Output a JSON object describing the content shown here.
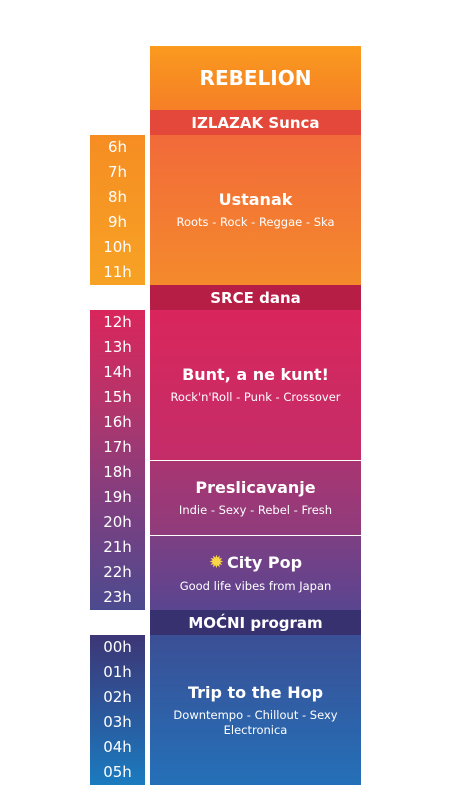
{
  "station": "REBELION",
  "blocks": [
    {
      "label": "IZLAZAK Sunca",
      "color": "#e4483a"
    },
    {
      "label": "SRCE dana",
      "color": "#b71e46"
    },
    {
      "label": "MOĆNI program",
      "color": "#383170"
    }
  ],
  "hours_morning": [
    "6h",
    "7h",
    "8h",
    "9h",
    "10h",
    "11h"
  ],
  "hours_day": [
    "12h",
    "13h",
    "14h",
    "15h",
    "16h",
    "17h",
    "18h",
    "19h",
    "20h",
    "21h",
    "22h",
    "23h"
  ],
  "hours_night": [
    "00h",
    "01h",
    "02h",
    "03h",
    "04h",
    "05h"
  ],
  "shows": [
    {
      "name": "Ustanak",
      "genre": "Roots - Rock - Reggae - Ska"
    },
    {
      "name": "Bunt, a ne kunt!",
      "genre": "Rock'n'Roll - Punk - Crossover"
    },
    {
      "name": "Preslicavanje",
      "genre": "Indie - Sexy - Rebel - Fresh"
    },
    {
      "name": "City Pop",
      "genre": "Good life vibes from Japan",
      "icon": "sun-icon"
    },
    {
      "name": "Trip to the Hop",
      "genre": "Downtempo - Chillout - Sexy Electronica"
    }
  ]
}
